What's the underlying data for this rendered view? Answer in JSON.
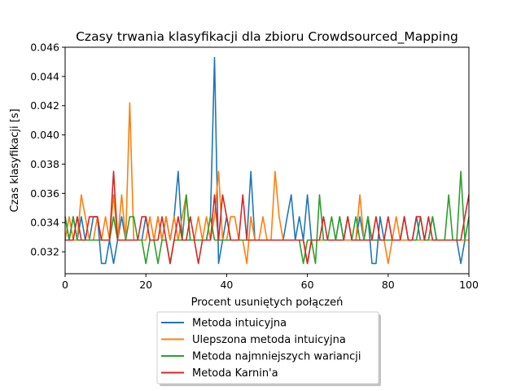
{
  "chart_data": {
    "type": "line",
    "title": "Czasy trwania klasyfikacji dla zbioru Crowdsourced_Mapping",
    "xlabel": "Procent usuniętych połączeń",
    "ylabel": "Czas klasyfikacji [s]",
    "xlim": [
      0,
      100
    ],
    "ylim": [
      0.0305,
      0.046
    ],
    "xticks": [
      0,
      20,
      40,
      60,
      80,
      100
    ],
    "yticks": [
      0.032,
      0.034,
      0.036,
      0.038,
      0.04,
      0.042,
      0.044,
      0.046
    ],
    "ytick_labels": [
      "0.032",
      "0.034",
      "0.036",
      "0.038",
      "0.040",
      "0.042",
      "0.044",
      "0.046"
    ],
    "grid": false,
    "legend_position": "below-center",
    "x": [
      0,
      1,
      2,
      3,
      4,
      5,
      6,
      7,
      8,
      9,
      10,
      11,
      12,
      13,
      14,
      15,
      16,
      17,
      18,
      19,
      20,
      21,
      22,
      23,
      24,
      25,
      26,
      27,
      28,
      29,
      30,
      31,
      32,
      33,
      34,
      35,
      36,
      37,
      38,
      39,
      40,
      41,
      42,
      43,
      44,
      45,
      46,
      47,
      48,
      49,
      50,
      51,
      52,
      53,
      54,
      55,
      56,
      57,
      58,
      59,
      60,
      61,
      62,
      63,
      64,
      65,
      66,
      67,
      68,
      69,
      70,
      71,
      72,
      73,
      74,
      75,
      76,
      77,
      78,
      79,
      80,
      81,
      82,
      83,
      84,
      85,
      86,
      87,
      88,
      89,
      90,
      91,
      92,
      93,
      94,
      95,
      96,
      97,
      98,
      99,
      100
    ],
    "series": [
      {
        "name": "Metoda intuicyjna",
        "color": "#1f77b4",
        "values": [
          0.0344,
          0.0328,
          0.0344,
          0.0328,
          0.0344,
          0.0328,
          0.0328,
          0.0344,
          0.0344,
          0.0312,
          0.0312,
          0.0328,
          0.0312,
          0.0328,
          0.0344,
          0.0328,
          0.0328,
          0.0328,
          0.0328,
          0.0328,
          0.0344,
          0.0328,
          0.0328,
          0.0344,
          0.0328,
          0.0344,
          0.0328,
          0.0344,
          0.0375,
          0.0328,
          0.0328,
          0.0328,
          0.0328,
          0.0328,
          0.0328,
          0.0328,
          0.0344,
          0.0453,
          0.0312,
          0.0328,
          0.0344,
          0.0328,
          0.0328,
          0.0328,
          0.0328,
          0.0328,
          0.0375,
          0.0328,
          0.0328,
          0.0328,
          0.0328,
          0.0328,
          0.0328,
          0.0328,
          0.0328,
          0.0344,
          0.0359,
          0.0328,
          0.0344,
          0.0328,
          0.0359,
          0.0328,
          0.0328,
          0.0328,
          0.0328,
          0.0328,
          0.0328,
          0.0328,
          0.0344,
          0.0328,
          0.0328,
          0.0328,
          0.0328,
          0.0344,
          0.0328,
          0.0344,
          0.0312,
          0.0312,
          0.0344,
          0.0328,
          0.0328,
          0.0328,
          0.0328,
          0.0328,
          0.0328,
          0.0328,
          0.0328,
          0.0344,
          0.0328,
          0.0328,
          0.0328,
          0.0344,
          0.0328,
          0.0328,
          0.0328,
          0.0328,
          0.0328,
          0.0328,
          0.0312,
          0.0328,
          0.0328
        ]
      },
      {
        "name": "Ulepszona metoda intuicyjna",
        "color": "#ff7f0e",
        "values": [
          0.0328,
          0.0344,
          0.0328,
          0.0328,
          0.0359,
          0.0344,
          0.0328,
          0.0328,
          0.0344,
          0.0328,
          0.0344,
          0.0328,
          0.0359,
          0.0328,
          0.0359,
          0.0328,
          0.0422,
          0.0328,
          0.0328,
          0.0328,
          0.0328,
          0.0344,
          0.0328,
          0.0344,
          0.0328,
          0.0344,
          0.0328,
          0.0344,
          0.0328,
          0.0344,
          0.0359,
          0.0328,
          0.0328,
          0.0344,
          0.0328,
          0.0344,
          0.0328,
          0.0344,
          0.0375,
          0.0328,
          0.0328,
          0.0344,
          0.0344,
          0.0328,
          0.0328,
          0.0312,
          0.0344,
          0.0328,
          0.0328,
          0.0344,
          0.0328,
          0.0328,
          0.0375,
          0.0344,
          0.0328,
          0.0328,
          0.0328,
          0.0328,
          0.0328,
          0.0328,
          0.0312,
          0.0328,
          0.0328,
          0.0328,
          0.0328,
          0.0328,
          0.0328,
          0.0328,
          0.0328,
          0.0328,
          0.0328,
          0.0328,
          0.0328,
          0.0359,
          0.0328,
          0.0344,
          0.0328,
          0.0328,
          0.0328,
          0.0328,
          0.0312,
          0.0328,
          0.0344,
          0.0328,
          0.0328,
          0.0328,
          0.0328,
          0.0328,
          0.0328,
          0.0328,
          0.0328,
          0.0328,
          0.0328,
          0.0328,
          0.0328,
          0.0328,
          0.0328,
          0.0328,
          0.0328,
          0.0328,
          0.0328
        ]
      },
      {
        "name": "Metoda najmniejszych wariancji",
        "color": "#2ca02c",
        "values": [
          0.0344,
          0.0328,
          0.0344,
          0.0328,
          0.0328,
          0.0328,
          0.0328,
          0.0328,
          0.0328,
          0.0328,
          0.0328,
          0.0328,
          0.0344,
          0.0328,
          0.0328,
          0.0328,
          0.0344,
          0.0344,
          0.0328,
          0.0328,
          0.0312,
          0.0328,
          0.0328,
          0.0312,
          0.0328,
          0.0328,
          0.0312,
          0.0328,
          0.0328,
          0.0328,
          0.0359,
          0.0328,
          0.0328,
          0.0328,
          0.0328,
          0.0328,
          0.0344,
          0.0328,
          0.0328,
          0.0328,
          0.0328,
          0.0328,
          0.0328,
          0.0328,
          0.0328,
          0.0328,
          0.0328,
          0.0328,
          0.0328,
          0.0328,
          0.0328,
          0.0328,
          0.0328,
          0.0328,
          0.0328,
          0.0328,
          0.0328,
          0.0328,
          0.0328,
          0.0312,
          0.0328,
          0.0328,
          0.0312,
          0.0359,
          0.0328,
          0.0328,
          0.0344,
          0.0328,
          0.0344,
          0.0328,
          0.0344,
          0.0328,
          0.0344,
          0.0328,
          0.0328,
          0.0344,
          0.0328,
          0.0328,
          0.0328,
          0.0328,
          0.0328,
          0.0328,
          0.0328,
          0.0328,
          0.0344,
          0.0328,
          0.0328,
          0.0328,
          0.0344,
          0.0328,
          0.0328,
          0.0344,
          0.0328,
          0.0328,
          0.0328,
          0.0359,
          0.0328,
          0.0328,
          0.0375,
          0.0328,
          0.0344
        ]
      },
      {
        "name": "Metoda Karnin'a",
        "color": "#d62728",
        "values": [
          0.0328,
          0.0328,
          0.0328,
          0.0344,
          0.0328,
          0.0328,
          0.0344,
          0.0344,
          0.0344,
          0.0328,
          0.0328,
          0.0328,
          0.0375,
          0.0328,
          0.0328,
          0.0328,
          0.0328,
          0.0328,
          0.0328,
          0.0344,
          0.0344,
          0.0328,
          0.0328,
          0.0328,
          0.0344,
          0.0328,
          0.0312,
          0.0328,
          0.0344,
          0.0328,
          0.0328,
          0.0344,
          0.0328,
          0.0312,
          0.0328,
          0.0328,
          0.0328,
          0.0359,
          0.0328,
          0.0359,
          0.0344,
          0.0328,
          0.0328,
          0.0328,
          0.0359,
          0.0328,
          0.0328,
          0.0328,
          0.0328,
          0.0328,
          0.0328,
          0.0328,
          0.0328,
          0.0328,
          0.0328,
          0.0328,
          0.0328,
          0.0328,
          0.0328,
          0.0328,
          0.0312,
          0.0328,
          0.0328,
          0.0328,
          0.0344,
          0.0328,
          0.0328,
          0.0328,
          0.0328,
          0.0328,
          0.0344,
          0.0328,
          0.0328,
          0.0328,
          0.0328,
          0.0328,
          0.0328,
          0.0344,
          0.0328,
          0.0328,
          0.0344,
          0.0328,
          0.0328,
          0.0328,
          0.0344,
          0.0328,
          0.0328,
          0.0344,
          0.0344,
          0.0328,
          0.0344,
          0.0328,
          0.0328,
          0.0328,
          0.0328,
          0.0328,
          0.0328,
          0.0328,
          0.0328,
          0.0344,
          0.0359
        ]
      }
    ]
  }
}
